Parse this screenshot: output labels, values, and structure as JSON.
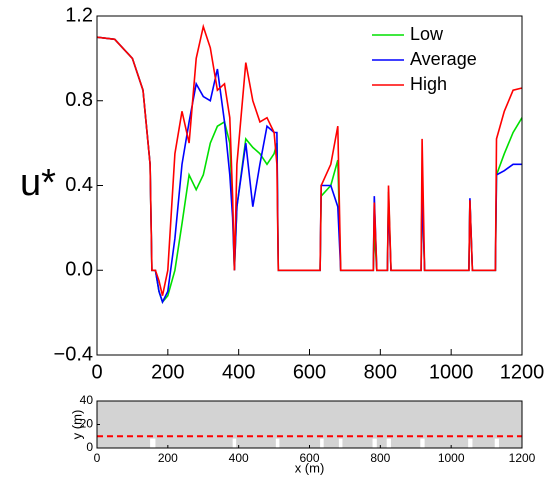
{
  "chart_data": [
    {
      "type": "line",
      "ylabel": "u*",
      "x": [
        0,
        50,
        100,
        130,
        150,
        155,
        165,
        175,
        185,
        200,
        220,
        240,
        260,
        280,
        300,
        320,
        340,
        360,
        375,
        383,
        388,
        395,
        420,
        440,
        460,
        480,
        500,
        508,
        512,
        630,
        633,
        660,
        680,
        688,
        780,
        783,
        790,
        820,
        823,
        830,
        915,
        918,
        925,
        1050,
        1053,
        1060,
        1125,
        1128,
        1150,
        1175,
        1200
      ],
      "series": [
        {
          "name": "Low",
          "color": "#00e000",
          "values": [
            1.1,
            1.09,
            1.0,
            0.85,
            0.5,
            0.0,
            0.0,
            -0.1,
            -0.15,
            -0.12,
            0.0,
            0.22,
            0.45,
            0.38,
            0.45,
            0.6,
            0.68,
            0.7,
            0.6,
            0.3,
            0.0,
            0.3,
            0.62,
            0.58,
            0.55,
            0.5,
            0.55,
            0.6,
            0.0,
            0.0,
            0.35,
            0.4,
            0.52,
            0.0,
            0.0,
            0.18,
            0.0,
            0.0,
            0.37,
            0.0,
            0.0,
            0.4,
            0.0,
            0.0,
            0.33,
            0.0,
            0.0,
            0.45,
            0.55,
            0.65,
            0.72
          ]
        },
        {
          "name": "Average",
          "color": "#0000ff",
          "values": [
            1.1,
            1.09,
            1.0,
            0.85,
            0.5,
            0.0,
            0.0,
            -0.1,
            -0.15,
            -0.1,
            0.15,
            0.5,
            0.7,
            0.88,
            0.82,
            0.8,
            0.95,
            0.7,
            0.45,
            0.25,
            0.0,
            0.3,
            0.6,
            0.3,
            0.5,
            0.68,
            0.65,
            0.65,
            0.0,
            0.0,
            0.4,
            0.4,
            0.3,
            0.0,
            0.0,
            0.35,
            0.0,
            0.0,
            0.33,
            0.0,
            0.0,
            0.38,
            0.0,
            0.0,
            0.34,
            0.0,
            0.0,
            0.45,
            0.47,
            0.5,
            0.5
          ]
        },
        {
          "name": "High",
          "color": "#ff0000",
          "values": [
            1.1,
            1.09,
            1.0,
            0.85,
            0.5,
            0.0,
            0.0,
            -0.05,
            -0.12,
            0.0,
            0.55,
            0.75,
            0.6,
            1.0,
            1.15,
            1.05,
            0.85,
            0.88,
            0.72,
            0.35,
            0.0,
            0.5,
            0.98,
            0.8,
            0.7,
            0.72,
            0.65,
            0.5,
            0.0,
            0.0,
            0.4,
            0.5,
            0.68,
            0.0,
            0.0,
            0.32,
            0.0,
            0.0,
            0.4,
            0.0,
            0.0,
            0.62,
            0.0,
            0.0,
            0.33,
            0.0,
            0.0,
            0.62,
            0.75,
            0.85,
            0.86
          ]
        }
      ],
      "xlim": [
        0,
        1200
      ],
      "xticks": [
        0,
        200,
        400,
        600,
        800,
        1000,
        1200
      ],
      "ylim": [
        -0.4,
        1.2
      ],
      "yticks": [
        1.2,
        0.8,
        0.4,
        {
          "value": 0,
          "label": "0.0"
        },
        {
          "value": -0.4,
          "label": "−0.4"
        }
      ],
      "legend": "top-right"
    },
    {
      "type": "strip",
      "xlabel": "x (m)",
      "ylabel": "y (m)",
      "fill_color": "#d3d3d3",
      "gap_top": 8,
      "gaps": [
        [
          150,
          165
        ],
        [
          383,
          393
        ],
        [
          505,
          515
        ],
        [
          630,
          640
        ],
        [
          683,
          693
        ],
        [
          778,
          790
        ],
        [
          818,
          830
        ],
        [
          913,
          925
        ],
        [
          1048,
          1060
        ],
        [
          1123,
          1135
        ]
      ],
      "line_y": 10,
      "line_color": "#ff0000",
      "xlim": [
        0,
        1200
      ],
      "xticks": [
        0,
        200,
        400,
        600,
        800,
        1000,
        1200
      ],
      "ylim": [
        0,
        40
      ],
      "yticks": [
        0,
        20,
        40
      ]
    }
  ]
}
